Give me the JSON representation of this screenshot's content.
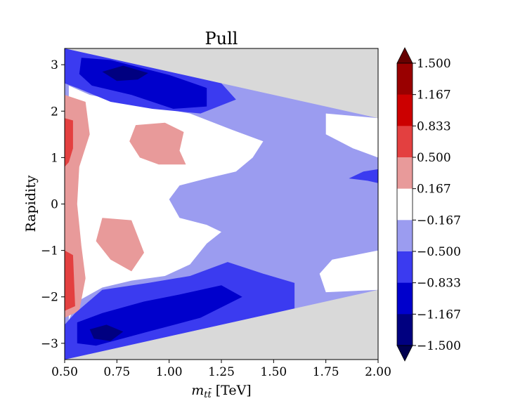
{
  "chart_data": {
    "type": "heatmap",
    "title": "Pull",
    "xlabel": "m",
    "xlabel_sub": "tt̄",
    "xlabel_unit": "[TeV]",
    "ylabel": "Rapidity",
    "xlim": [
      0.5,
      2.0
    ],
    "ylim": [
      -3.35,
      3.35
    ],
    "x_ticks": [
      "0.50",
      "0.75",
      "1.00",
      "1.25",
      "1.50",
      "1.75",
      "2.00"
    ],
    "x_tick_values": [
      0.5,
      0.75,
      1.0,
      1.25,
      1.5,
      1.75,
      2.0
    ],
    "y_ticks": [
      "3",
      "2",
      "1",
      "0",
      "−1",
      "−2",
      "−3"
    ],
    "y_tick_values": [
      3,
      2,
      1,
      0,
      -1,
      -2,
      -3
    ],
    "background_color": "#d9d9d9",
    "colorbar": {
      "labels": [
        "1.500",
        "1.167",
        "0.833",
        "0.500",
        "0.167",
        "−0.167",
        "−0.500",
        "−0.833",
        "−1.167",
        "−1.500"
      ],
      "boundaries": [
        1.5,
        1.167,
        0.833,
        0.5,
        0.167,
        -0.167,
        -0.5,
        -0.833,
        -1.167,
        -1.5
      ],
      "band_colors": [
        "#990000",
        "#cc0000",
        "#e34040",
        "#e89a9a",
        "#ffffff",
        "#9b9cf0",
        "#3b3bf0",
        "#0000cc",
        "#000080"
      ],
      "over_color": "#660000",
      "under_color": "#000050"
    },
    "boundary": {
      "x": [
        0.5,
        2.0
      ],
      "y_upper": [
        3.35,
        1.85
      ],
      "y_lower": [
        -3.35,
        -1.85
      ]
    },
    "regions": [
      {
        "level": -0.333,
        "color": "#9b9cf0",
        "name": "pull-band-minus-0.33",
        "points": [
          [
            0.5,
            3.35
          ],
          [
            2.0,
            1.85
          ],
          [
            2.0,
            -1.85
          ],
          [
            0.5,
            -3.35
          ]
        ]
      },
      {
        "level": 0.0,
        "color": "#ffffff",
        "name": "pull-band-zero",
        "points": [
          [
            0.52,
            2.55
          ],
          [
            0.62,
            2.35
          ],
          [
            0.85,
            2.15
          ],
          [
            1.1,
            1.95
          ],
          [
            1.3,
            1.6
          ],
          [
            1.45,
            1.35
          ],
          [
            1.4,
            1.0
          ],
          [
            1.32,
            0.7
          ],
          [
            1.18,
            0.55
          ],
          [
            1.05,
            0.4
          ],
          [
            1.0,
            0.1
          ],
          [
            1.05,
            -0.3
          ],
          [
            1.18,
            -0.45
          ],
          [
            1.25,
            -0.6
          ],
          [
            1.18,
            -0.85
          ],
          [
            1.1,
            -1.3
          ],
          [
            0.98,
            -1.55
          ],
          [
            0.82,
            -1.65
          ],
          [
            0.68,
            -1.8
          ],
          [
            0.56,
            -2.1
          ],
          [
            0.52,
            -2.5
          ]
        ]
      },
      {
        "level": 0.0,
        "color": "#ffffff",
        "name": "pull-band-zero-right",
        "points": [
          [
            1.75,
            1.95
          ],
          [
            2.0,
            1.85
          ],
          [
            2.0,
            1.0
          ],
          [
            1.88,
            1.2
          ],
          [
            1.75,
            1.5
          ]
        ]
      },
      {
        "level": 0.0,
        "color": "#ffffff",
        "name": "pull-band-zero-lower-right",
        "points": [
          [
            1.78,
            -1.2
          ],
          [
            2.0,
            -1.0
          ],
          [
            2.0,
            -1.85
          ],
          [
            1.75,
            -1.9
          ],
          [
            1.72,
            -1.5
          ]
        ]
      },
      {
        "level": 0.333,
        "color": "#e89a9a",
        "name": "pull-band-plus-0.33-left",
        "points": [
          [
            0.5,
            2.35
          ],
          [
            0.6,
            2.2
          ],
          [
            0.62,
            1.5
          ],
          [
            0.57,
            0.8
          ],
          [
            0.56,
            0.0
          ],
          [
            0.58,
            -0.9
          ],
          [
            0.6,
            -1.6
          ],
          [
            0.57,
            -2.3
          ],
          [
            0.5,
            -2.45
          ]
        ]
      },
      {
        "level": 0.333,
        "color": "#e89a9a",
        "name": "pull-band-plus-0.33-mid-upper",
        "points": [
          [
            0.84,
            1.7
          ],
          [
            0.98,
            1.75
          ],
          [
            1.07,
            1.55
          ],
          [
            1.05,
            1.15
          ],
          [
            1.08,
            0.85
          ],
          [
            0.95,
            0.85
          ],
          [
            0.86,
            1.0
          ],
          [
            0.81,
            1.35
          ]
        ]
      },
      {
        "level": 0.333,
        "color": "#e89a9a",
        "name": "pull-band-plus-0.33-mid-lower",
        "points": [
          [
            0.68,
            -0.3
          ],
          [
            0.82,
            -0.35
          ],
          [
            0.85,
            -0.7
          ],
          [
            0.88,
            -1.05
          ],
          [
            0.82,
            -1.45
          ],
          [
            0.72,
            -1.2
          ],
          [
            0.65,
            -0.8
          ]
        ]
      },
      {
        "level": 0.667,
        "color": "#e34040",
        "name": "pull-band-plus-0.67-left",
        "points": [
          [
            0.5,
            1.85
          ],
          [
            0.54,
            1.8
          ],
          [
            0.54,
            1.2
          ],
          [
            0.52,
            0.9
          ],
          [
            0.5,
            0.8
          ]
        ]
      },
      {
        "level": 0.667,
        "color": "#e34040",
        "name": "pull-band-plus-0.67-left-lower",
        "points": [
          [
            0.5,
            -1.0
          ],
          [
            0.54,
            -1.1
          ],
          [
            0.55,
            -2.2
          ],
          [
            0.5,
            -2.3
          ]
        ]
      },
      {
        "level": -0.667,
        "color": "#3b3bf0",
        "name": "pull-band-minus-0.67-top",
        "points": [
          [
            0.5,
            3.35
          ],
          [
            1.25,
            2.6
          ],
          [
            1.32,
            2.25
          ],
          [
            1.15,
            1.95
          ],
          [
            0.92,
            2.05
          ],
          [
            0.72,
            2.2
          ],
          [
            0.56,
            2.5
          ],
          [
            0.5,
            2.6
          ]
        ]
      },
      {
        "level": -0.667,
        "color": "#3b3bf0",
        "name": "pull-band-minus-0.67-bottom",
        "points": [
          [
            0.5,
            -3.35
          ],
          [
            1.6,
            -2.25
          ],
          [
            1.6,
            -1.7
          ],
          [
            1.45,
            -1.5
          ],
          [
            1.28,
            -1.25
          ],
          [
            1.1,
            -1.55
          ],
          [
            0.9,
            -1.7
          ],
          [
            0.68,
            -1.85
          ],
          [
            0.55,
            -2.35
          ],
          [
            0.5,
            -2.6
          ]
        ]
      },
      {
        "level": -0.667,
        "color": "#3b3bf0",
        "name": "pull-band-minus-0.67-right",
        "points": [
          [
            1.86,
            0.55
          ],
          [
            1.95,
            0.5
          ],
          [
            2.0,
            0.45
          ],
          [
            2.0,
            0.75
          ],
          [
            1.93,
            0.7
          ]
        ]
      },
      {
        "level": -1.0,
        "color": "#0000cc",
        "name": "pull-band-minus-1.0-top",
        "points": [
          [
            0.58,
            3.15
          ],
          [
            0.72,
            3.1
          ],
          [
            1.0,
            2.78
          ],
          [
            1.18,
            2.5
          ],
          [
            1.18,
            2.1
          ],
          [
            1.02,
            2.05
          ],
          [
            0.82,
            2.35
          ],
          [
            0.63,
            2.55
          ],
          [
            0.57,
            2.8
          ]
        ]
      },
      {
        "level": -1.0,
        "color": "#0000cc",
        "name": "pull-band-minus-1.0-bottom",
        "points": [
          [
            0.56,
            -2.55
          ],
          [
            0.68,
            -2.35
          ],
          [
            0.88,
            -2.1
          ],
          [
            1.05,
            -1.95
          ],
          [
            1.25,
            -1.75
          ],
          [
            1.35,
            -2.0
          ],
          [
            1.15,
            -2.45
          ],
          [
            0.9,
            -2.75
          ],
          [
            0.65,
            -3.05
          ],
          [
            0.56,
            -3.0
          ]
        ]
      },
      {
        "level": -1.333,
        "color": "#000080",
        "name": "pull-band-minus-1.33-top",
        "points": [
          [
            0.68,
            2.85
          ],
          [
            0.78,
            2.98
          ],
          [
            0.9,
            2.82
          ],
          [
            0.85,
            2.68
          ],
          [
            0.75,
            2.65
          ]
        ]
      },
      {
        "level": -1.333,
        "color": "#000080",
        "name": "pull-band-minus-1.33-bottom",
        "points": [
          [
            0.62,
            -2.7
          ],
          [
            0.7,
            -2.6
          ],
          [
            0.78,
            -2.75
          ],
          [
            0.72,
            -2.95
          ],
          [
            0.64,
            -2.9
          ]
        ]
      }
    ]
  }
}
